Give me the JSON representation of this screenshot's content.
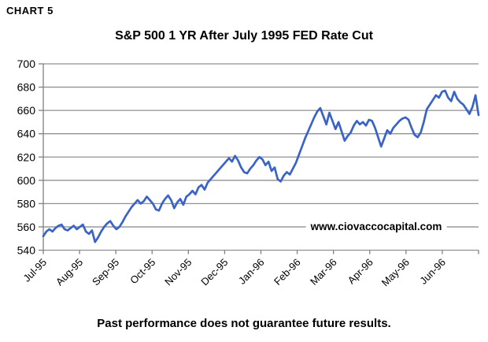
{
  "page": {
    "chart_label": "CHART 5",
    "footer": "Past performance does not guarantee future results."
  },
  "chart_data": {
    "type": "line",
    "title": "S&P 500 1 YR After July 1995 FED Rate Cut",
    "watermark": "www.ciovaccocapital.com",
    "xlabel": "",
    "ylabel": "",
    "ylim": [
      540,
      700
    ],
    "y_ticks": [
      540,
      560,
      580,
      600,
      620,
      640,
      660,
      680,
      700
    ],
    "x_tick_labels": [
      "Jul-95",
      "Aug-95",
      "Sep-95",
      "Oct-95",
      "Nov-95",
      "Dec-95",
      "Jan-96",
      "Feb-96",
      "Mar-96",
      "Apr-96",
      "May-96",
      "Jun-96"
    ],
    "grid": true,
    "legend_position": "none",
    "line_color": "#3a63c8",
    "gridline_color": "#919191",
    "axis_color": "#808080",
    "values": [
      552,
      556,
      558,
      556,
      559,
      561,
      562,
      558,
      557,
      559,
      561,
      558,
      560,
      562,
      556,
      554,
      557,
      547,
      551,
      556,
      560,
      563,
      565,
      561,
      558,
      560,
      564,
      569,
      573,
      577,
      580,
      583,
      580,
      582,
      586,
      583,
      580,
      575,
      574,
      580,
      584,
      587,
      583,
      576,
      581,
      584,
      579,
      586,
      588,
      591,
      588,
      594,
      596,
      592,
      598,
      601,
      604,
      607,
      610,
      613,
      616,
      619,
      616,
      621,
      617,
      611,
      607,
      606,
      610,
      613,
      617,
      620,
      618,
      613,
      616,
      608,
      611,
      601,
      599,
      604,
      607,
      605,
      610,
      615,
      622,
      629,
      636,
      642,
      648,
      654,
      659,
      662,
      655,
      648,
      658,
      651,
      644,
      650,
      642,
      634,
      638,
      641,
      647,
      651,
      648,
      650,
      647,
      652,
      651,
      645,
      637,
      629,
      636,
      643,
      640,
      645,
      648,
      651,
      653,
      654,
      652,
      645,
      639,
      637,
      641,
      650,
      661,
      665,
      669,
      673,
      671,
      676,
      677,
      671,
      668,
      676,
      670,
      667,
      665,
      661,
      657,
      663,
      673,
      656
    ]
  }
}
